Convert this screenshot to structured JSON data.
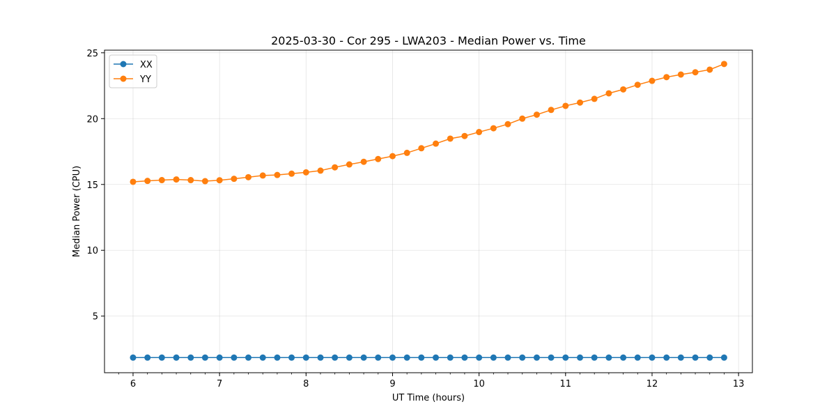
{
  "chart_data": {
    "type": "line",
    "title": "2025-03-30 - Cor 295 - LWA203 - Median Power vs. Time",
    "xlabel": "UT Time (hours)",
    "ylabel": "Median Power (CPU)",
    "xlim": [
      5.67,
      13.16
    ],
    "ylim": [
      0.7,
      25.2
    ],
    "xticks": [
      6,
      7,
      8,
      9,
      10,
      11,
      12,
      13
    ],
    "yticks": [
      5,
      10,
      15,
      20,
      25
    ],
    "grid": true,
    "legend_position": "upper-left",
    "x": [
      6.0,
      6.167,
      6.333,
      6.5,
      6.667,
      6.833,
      7.0,
      7.167,
      7.333,
      7.5,
      7.667,
      7.833,
      8.0,
      8.167,
      8.333,
      8.5,
      8.667,
      8.833,
      9.0,
      9.167,
      9.333,
      9.5,
      9.667,
      9.833,
      10.0,
      10.167,
      10.333,
      10.5,
      10.667,
      10.833,
      11.0,
      11.167,
      11.333,
      11.5,
      11.667,
      11.833,
      12.0,
      12.167,
      12.333,
      12.5,
      12.667,
      12.833
    ],
    "series": [
      {
        "name": "XX",
        "color": "#1f77b4",
        "values": [
          1.85,
          1.85,
          1.85,
          1.85,
          1.85,
          1.85,
          1.85,
          1.85,
          1.85,
          1.85,
          1.85,
          1.85,
          1.85,
          1.85,
          1.85,
          1.85,
          1.85,
          1.85,
          1.85,
          1.85,
          1.85,
          1.85,
          1.85,
          1.85,
          1.85,
          1.85,
          1.85,
          1.85,
          1.85,
          1.85,
          1.85,
          1.85,
          1.85,
          1.85,
          1.85,
          1.85,
          1.85,
          1.85,
          1.85,
          1.85,
          1.85,
          1.85
        ]
      },
      {
        "name": "YY",
        "color": "#ff7f0e",
        "values": [
          15.2,
          15.27,
          15.33,
          15.38,
          15.33,
          15.25,
          15.32,
          15.43,
          15.55,
          15.68,
          15.72,
          15.82,
          15.92,
          16.05,
          16.3,
          16.52,
          16.72,
          16.93,
          17.15,
          17.4,
          17.75,
          18.1,
          18.48,
          18.68,
          18.98,
          19.27,
          19.58,
          20.0,
          20.3,
          20.66,
          20.97,
          21.22,
          21.5,
          21.92,
          22.22,
          22.57,
          22.87,
          23.15,
          23.35,
          23.52,
          23.72,
          24.15
        ]
      }
    ]
  }
}
